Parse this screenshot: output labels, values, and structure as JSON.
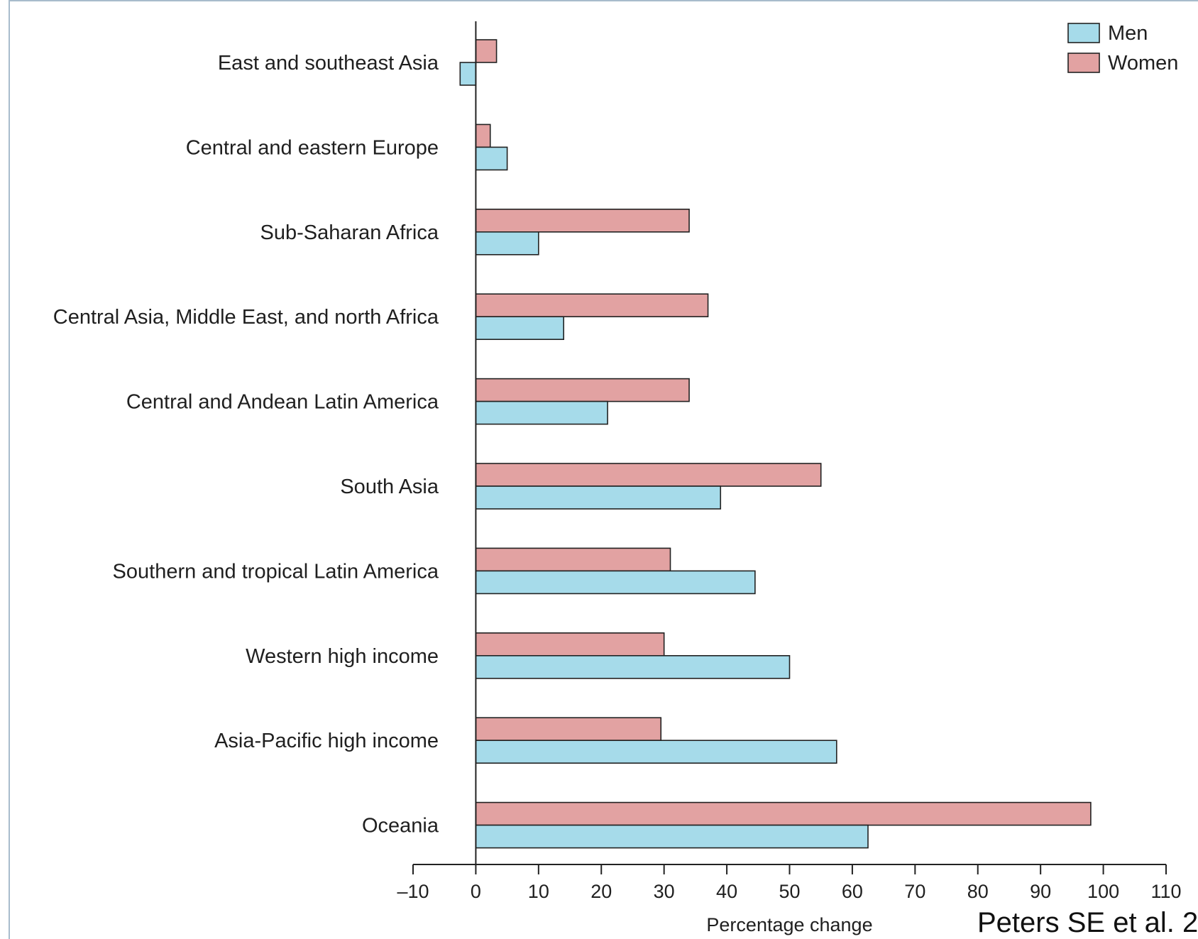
{
  "chart_data": {
    "type": "bar",
    "orientation": "horizontal",
    "categories": [
      "East and southeast Asia",
      "Central and eastern Europe",
      "Sub-Saharan Africa",
      "Central Asia, Middle East, and north Africa",
      "Central and Andean Latin America",
      "South Asia",
      "Southern and tropical Latin America",
      "Western high income",
      "Asia-Pacific high income",
      "Oceania"
    ],
    "series": [
      {
        "name": "Men",
        "color": "#a6dbea",
        "values": [
          -2.5,
          5,
          10,
          14,
          21,
          39,
          44.5,
          50,
          57.5,
          62.5
        ]
      },
      {
        "name": "Women",
        "color": "#e2a2a2",
        "values": [
          3.3,
          2.3,
          34,
          37,
          34,
          55,
          31,
          30,
          29.5,
          98
        ]
      }
    ],
    "xlabel": "Percentage change",
    "xlim": [
      -10,
      110
    ],
    "xticks": [
      -10,
      0,
      10,
      20,
      30,
      40,
      50,
      60,
      70,
      80,
      90,
      100,
      110
    ],
    "xtick_labels": [
      "–10",
      "0",
      "10",
      "20",
      "30",
      "40",
      "50",
      "60",
      "70",
      "80",
      "90",
      "100",
      "110"
    ],
    "legend_position": "top-right",
    "grid": false
  },
  "citation": "Peters SE et al. 2"
}
